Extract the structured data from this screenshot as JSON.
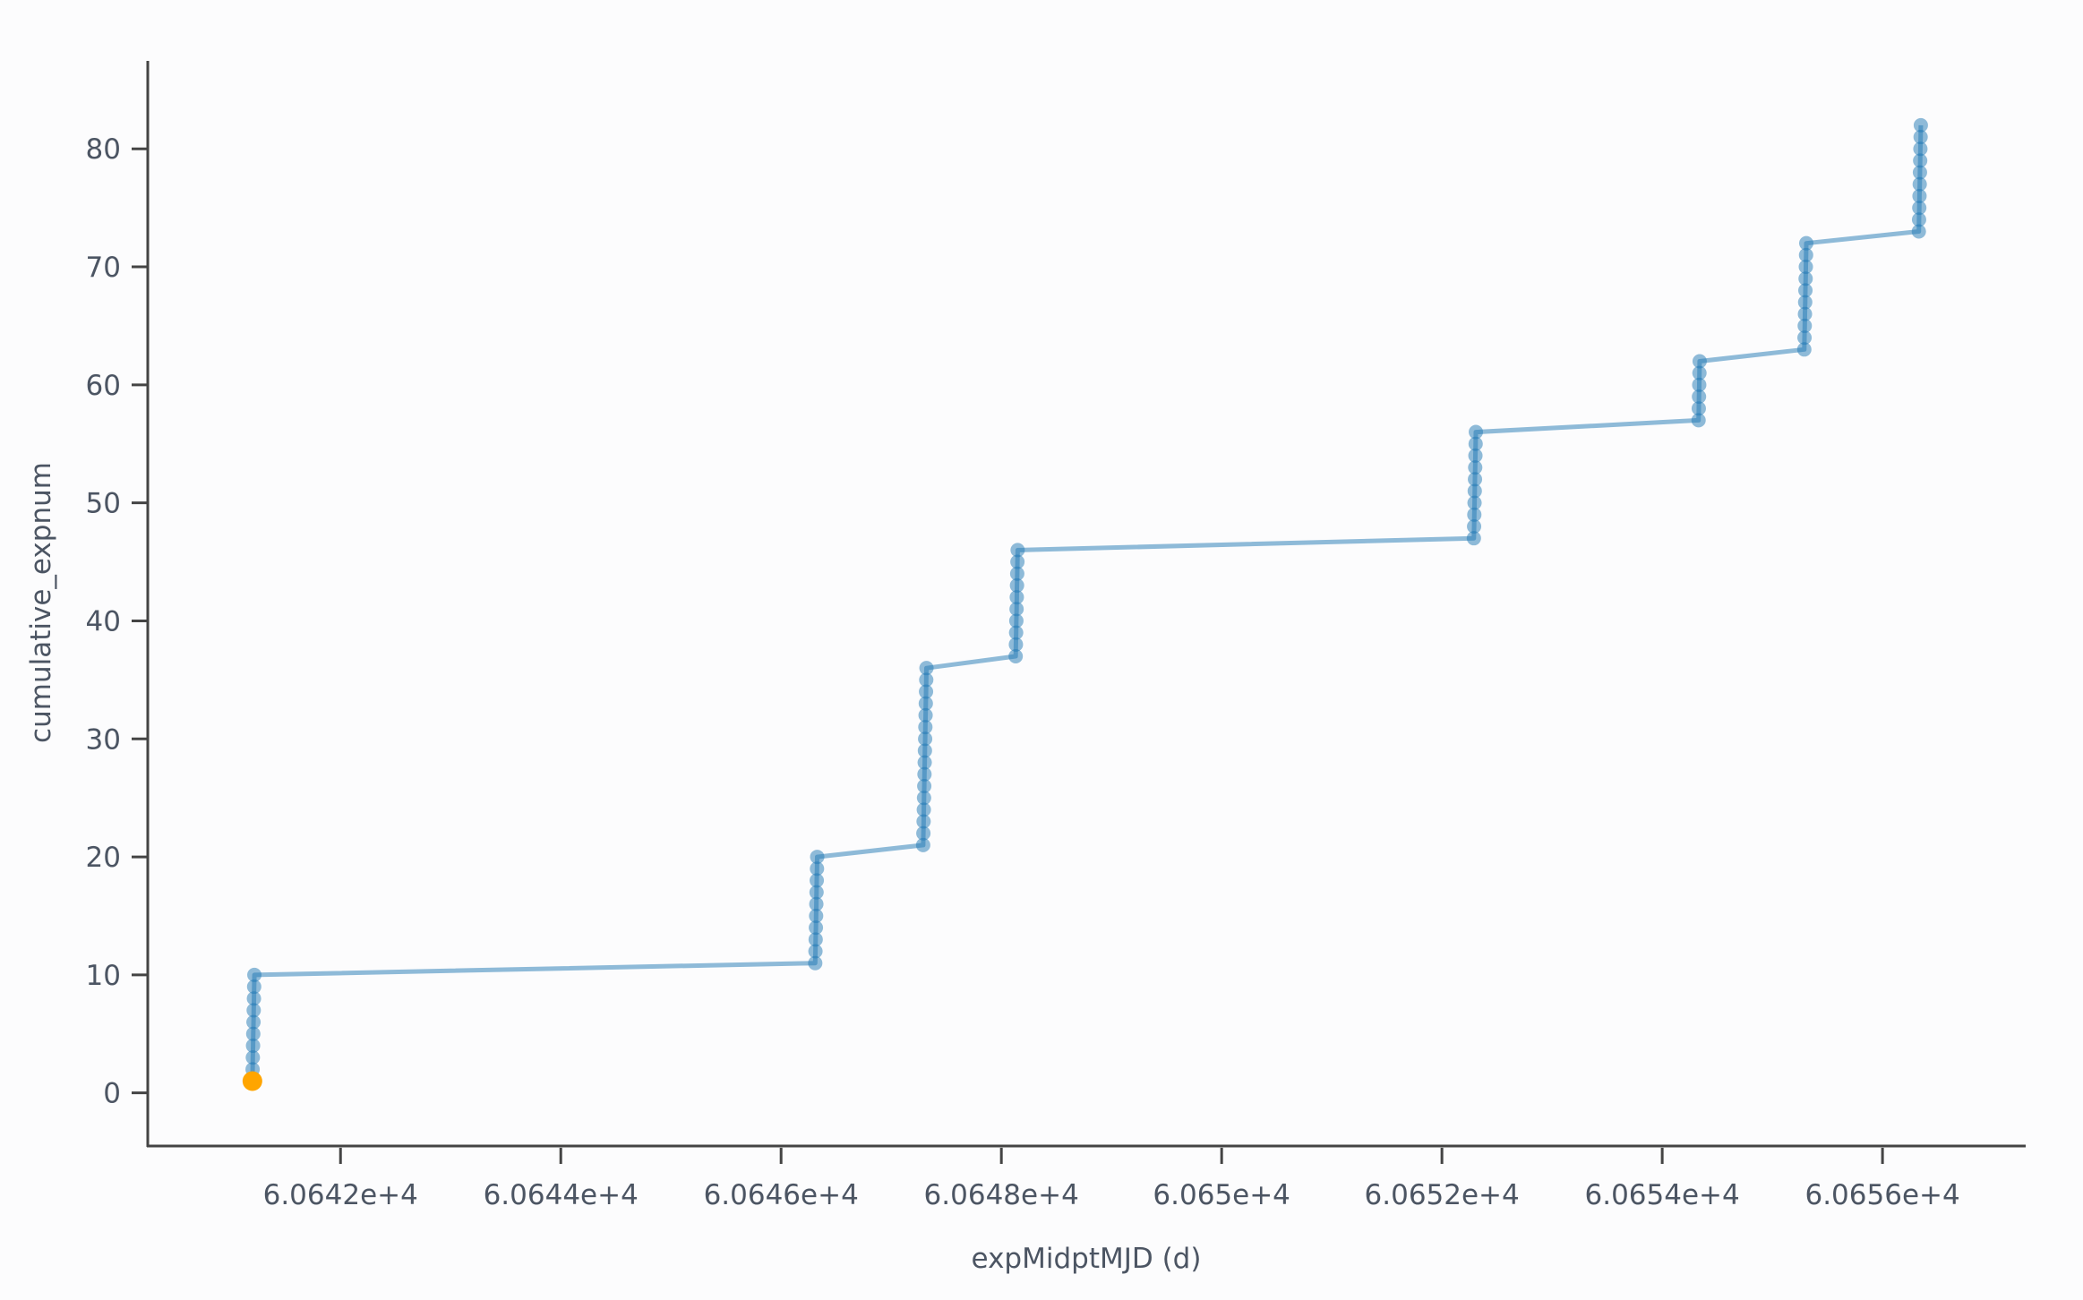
{
  "chart_data": {
    "type": "scatter",
    "mode": "lines+markers",
    "xlabel": "expMidptMJD (d)",
    "ylabel": "cumulative_expnum",
    "xlim": [
      60640.25,
      60657.3
    ],
    "ylim": [
      -4.5,
      87.3
    ],
    "x_ticks": [
      60642,
      60644,
      60646,
      60648,
      60650,
      60652,
      60654,
      60656
    ],
    "x_tick_labels": [
      "6.0642e+4",
      "6.0644e+4",
      "6.0646e+4",
      "6.0648e+4",
      "6.065e+4",
      "6.0652e+4",
      "6.0654e+4",
      "6.0656e+4"
    ],
    "y_ticks": [
      0,
      10,
      20,
      30,
      40,
      50,
      60,
      70,
      80
    ],
    "y_tick_labels": [
      "0",
      "10",
      "20",
      "30",
      "40",
      "50",
      "60",
      "70",
      "80"
    ],
    "grid": false,
    "series_color": "#1f77b4",
    "highlight_color": "#ffa500",
    "highlight_index": 0,
    "x": [
      60641.2,
      60641.202,
      60641.204,
      60641.206,
      60641.208,
      60641.21,
      60641.212,
      60641.214,
      60641.216,
      60641.218,
      60646.31,
      60646.312,
      60646.314,
      60646.316,
      60646.318,
      60646.32,
      60646.322,
      60646.324,
      60646.326,
      60646.328,
      60647.29,
      60647.292,
      60647.294,
      60647.296,
      60647.298,
      60647.3,
      60647.302,
      60647.304,
      60647.306,
      60647.308,
      60647.31,
      60647.312,
      60647.314,
      60647.316,
      60647.318,
      60647.32,
      60648.13,
      60648.132,
      60648.134,
      60648.136,
      60648.138,
      60648.14,
      60648.142,
      60648.144,
      60648.146,
      60648.148,
      60652.29,
      60652.292,
      60652.294,
      60652.296,
      60652.298,
      60652.3,
      60652.302,
      60652.304,
      60652.306,
      60652.308,
      60654.33,
      60654.332,
      60654.334,
      60654.336,
      60654.338,
      60654.34,
      60655.29,
      60655.292,
      60655.294,
      60655.296,
      60655.298,
      60655.3,
      60655.302,
      60655.304,
      60655.306,
      60655.308,
      60656.33,
      60656.332,
      60656.334,
      60656.336,
      60656.338,
      60656.34,
      60656.342,
      60656.344,
      60656.346,
      60656.348
    ],
    "y": [
      1,
      2,
      3,
      4,
      5,
      6,
      7,
      8,
      9,
      10,
      11,
      12,
      13,
      14,
      15,
      16,
      17,
      18,
      19,
      20,
      21,
      22,
      23,
      24,
      25,
      26,
      27,
      28,
      29,
      30,
      31,
      32,
      33,
      34,
      35,
      36,
      37,
      38,
      39,
      40,
      41,
      42,
      43,
      44,
      45,
      46,
      47,
      48,
      49,
      50,
      51,
      52,
      53,
      54,
      55,
      56,
      57,
      58,
      59,
      60,
      61,
      62,
      63,
      64,
      65,
      66,
      67,
      68,
      69,
      70,
      71,
      72,
      73,
      74,
      75,
      76,
      77,
      78,
      79,
      80,
      81,
      82
    ]
  }
}
